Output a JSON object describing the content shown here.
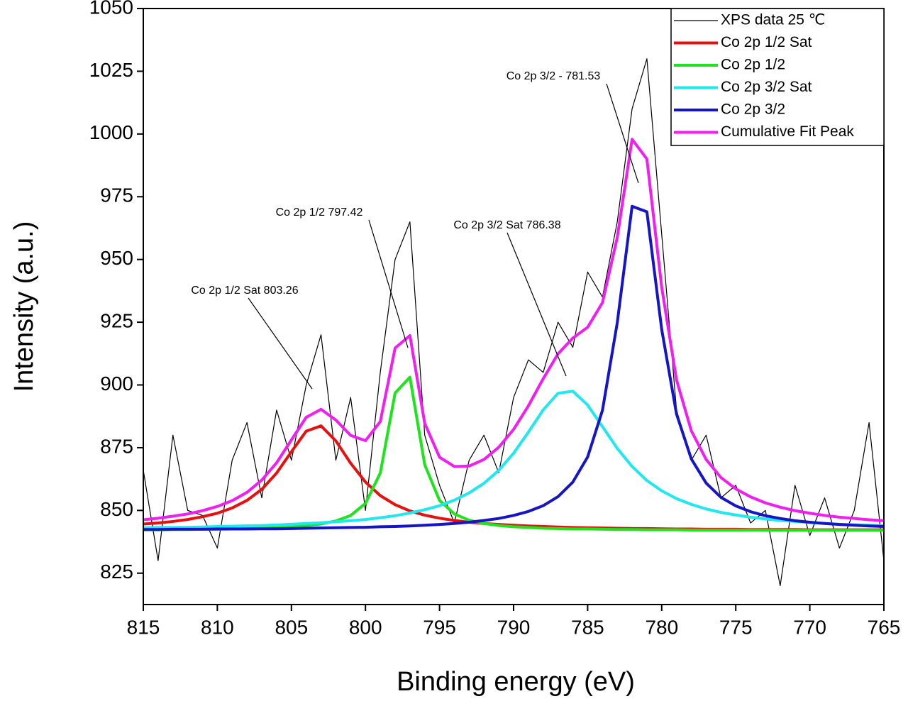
{
  "chart_data": {
    "type": "line",
    "xlabel": "Binding energy (eV)",
    "ylabel": "Intensity (a.u.)",
    "x": [
      815,
      814,
      813,
      812,
      811,
      810,
      809,
      808,
      807,
      806,
      805,
      804,
      803,
      802,
      801,
      800,
      799,
      798,
      797,
      796,
      795,
      794,
      793,
      792,
      791,
      790,
      789,
      788,
      787,
      786,
      785,
      784,
      783,
      782,
      781,
      780,
      779,
      778,
      777,
      776,
      775,
      774,
      773,
      772,
      771,
      770,
      769,
      768,
      767,
      766,
      765
    ],
    "xlim": [
      815,
      765
    ],
    "xticks": [
      815,
      810,
      805,
      800,
      795,
      790,
      785,
      780,
      775,
      770,
      765
    ],
    "ylim": [
      812.5,
      1050
    ],
    "yticks": [
      825,
      850,
      875,
      900,
      925,
      950,
      975,
      1000,
      1025,
      1050
    ],
    "legend": "upper right",
    "series": [
      {
        "name": "XPS data 25 ℃",
        "color": "#000000",
        "values": [
          866,
          830,
          880,
          850,
          848,
          835,
          870,
          885,
          855,
          890,
          870,
          900,
          920,
          870,
          895,
          850,
          905,
          950,
          965,
          880,
          860,
          845,
          870,
          880,
          865,
          895,
          910,
          905,
          925,
          915,
          945,
          935,
          965,
          1010,
          1030,
          960,
          890,
          870,
          880,
          855,
          860,
          845,
          850,
          820,
          860,
          840,
          855,
          835,
          850,
          885,
          830
        ]
      },
      {
        "name": "Co 2p 1/2 Sat",
        "color": "#e8100f",
        "values": [
          844.6,
          845.0,
          845.6,
          846.4,
          847.5,
          848.9,
          851.0,
          854.0,
          858.4,
          864.9,
          873.4,
          881.6,
          883.7,
          877.7,
          868.8,
          861.3,
          855.9,
          852.3,
          849.8,
          848.1,
          846.9,
          846.0,
          845.3,
          844.8,
          844.4,
          844.1,
          843.8,
          843.6,
          843.4,
          843.2,
          843.1,
          843.0,
          842.9,
          842.8,
          842.8,
          842.7,
          842.6,
          842.6,
          842.5,
          842.5,
          842.5,
          842.4,
          842.4,
          842.4,
          842.4,
          842.3,
          842.3,
          842.3,
          842.3,
          842.3,
          842.3
        ]
      },
      {
        "name": "Co 2p 1/2",
        "color": "#1ee41e",
        "values": [
          842.3,
          842.3,
          842.4,
          842.4,
          842.5,
          842.5,
          842.6,
          842.8,
          842.9,
          843.1,
          843.4,
          843.9,
          844.6,
          845.8,
          848.0,
          852.8,
          864.9,
          896.8,
          903.1,
          868.2,
          854.0,
          848.6,
          846.1,
          844.8,
          844.0,
          843.5,
          843.2,
          842.9,
          842.8,
          842.6,
          842.6,
          842.5,
          842.4,
          842.4,
          842.3,
          842.3,
          842.3,
          842.2,
          842.2,
          842.2,
          842.2,
          842.2,
          842.1,
          842.1,
          842.1,
          842.1,
          842.1,
          842.1,
          842.1,
          842.1,
          842.1
        ]
      },
      {
        "name": "Co 2p 3/2 Sat",
        "color": "#20e8f0",
        "values": [
          843.1,
          843.2,
          843.2,
          843.3,
          843.4,
          843.6,
          843.7,
          843.9,
          844.0,
          844.2,
          844.5,
          844.8,
          845.1,
          845.5,
          845.9,
          846.4,
          847.1,
          847.9,
          849.0,
          850.3,
          851.9,
          854.1,
          857.0,
          860.8,
          866.0,
          872.8,
          881.2,
          890.1,
          896.7,
          897.5,
          892.0,
          883.4,
          874.7,
          867.5,
          861.9,
          857.8,
          854.7,
          852.4,
          850.6,
          849.2,
          848.2,
          847.3,
          846.6,
          846.0,
          845.6,
          845.2,
          844.8,
          844.5,
          844.3,
          844.1,
          843.9
        ]
      },
      {
        "name": "Co 2p 3/2",
        "color": "#1515c8",
        "values": [
          842.4,
          842.4,
          842.5,
          842.5,
          842.5,
          842.6,
          842.6,
          842.6,
          842.7,
          842.7,
          842.8,
          842.9,
          843.0,
          843.1,
          843.2,
          843.3,
          843.5,
          843.6,
          843.8,
          844.1,
          844.4,
          844.8,
          845.3,
          846.0,
          846.8,
          848.0,
          849.6,
          851.9,
          855.5,
          861.3,
          871.3,
          889.9,
          924.8,
          971.2,
          969.0,
          922.1,
          888.4,
          870.5,
          860.9,
          855.2,
          851.8,
          849.5,
          847.9,
          846.8,
          845.9,
          845.3,
          844.8,
          844.4,
          844.1,
          843.8,
          843.6
        ]
      },
      {
        "name": "Cumulative Fit Peak",
        "color": "#f01ef0",
        "values": [
          846.3,
          846.9,
          847.7,
          848.6,
          849.9,
          851.6,
          853.9,
          857.2,
          862.1,
          869.0,
          878.1,
          887.1,
          890.3,
          886.0,
          879.9,
          877.8,
          885.4,
          914.7,
          919.7,
          884.7,
          871.2,
          867.5,
          867.7,
          870.3,
          875.2,
          882.3,
          891.7,
          902.5,
          912.4,
          918.7,
          923.0,
          932.8,
          958.8,
          997.9,
          990.0,
          938.9,
          902.0,
          881.7,
          870.3,
          863.1,
          858.6,
          855.4,
          853.0,
          851.3,
          849.9,
          848.9,
          848.0,
          847.3,
          846.8,
          846.3,
          845.9
        ]
      }
    ],
    "annotations": [
      "Co 2p 1/2 Sat 803.26",
      "Co 2p 1/2 797.42",
      "Co 2p 3/2 Sat 786.38",
      "Co 2p 3/2 - 781.53"
    ]
  }
}
